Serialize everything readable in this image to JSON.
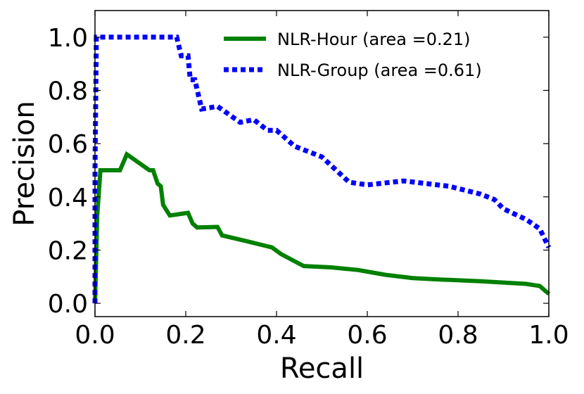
{
  "chart_data": {
    "type": "line",
    "xlabel": "Recall",
    "ylabel": "Precision",
    "xlim": [
      0.0,
      1.0
    ],
    "ylim": [
      -0.05,
      1.1
    ],
    "xticks": [
      "0.0",
      "0.2",
      "0.4",
      "0.6",
      "0.8",
      "1.0"
    ],
    "yticks": [
      "0.0",
      "0.2",
      "0.4",
      "0.6",
      "0.8",
      "1.0"
    ],
    "grid": false,
    "legend_position": "top-right",
    "series": [
      {
        "name": "NLR-Hour (area =0.21)",
        "color": "#008000",
        "style": "solid",
        "points": [
          [
            0.0,
            0.0
          ],
          [
            0.005,
            0.33
          ],
          [
            0.012,
            0.5
          ],
          [
            0.055,
            0.5
          ],
          [
            0.07,
            0.56
          ],
          [
            0.12,
            0.5
          ],
          [
            0.128,
            0.5
          ],
          [
            0.138,
            0.45
          ],
          [
            0.145,
            0.44
          ],
          [
            0.15,
            0.37
          ],
          [
            0.165,
            0.33
          ],
          [
            0.205,
            0.34
          ],
          [
            0.215,
            0.3
          ],
          [
            0.225,
            0.285
          ],
          [
            0.27,
            0.287
          ],
          [
            0.28,
            0.255
          ],
          [
            0.33,
            0.235
          ],
          [
            0.39,
            0.21
          ],
          [
            0.41,
            0.185
          ],
          [
            0.46,
            0.14
          ],
          [
            0.52,
            0.135
          ],
          [
            0.58,
            0.125
          ],
          [
            0.64,
            0.107
          ],
          [
            0.7,
            0.095
          ],
          [
            0.75,
            0.09
          ],
          [
            0.85,
            0.083
          ],
          [
            0.95,
            0.073
          ],
          [
            0.98,
            0.065
          ],
          [
            1.0,
            0.035
          ]
        ]
      },
      {
        "name": "NLR-Group (area =0.61)",
        "color": "#0000ff",
        "style": "dotted",
        "points": [
          [
            0.0,
            0.0
          ],
          [
            0.0,
            0.5
          ],
          [
            0.003,
            1.0
          ],
          [
            0.18,
            1.0
          ],
          [
            0.19,
            0.93
          ],
          [
            0.205,
            0.93
          ],
          [
            0.21,
            0.84
          ],
          [
            0.22,
            0.84
          ],
          [
            0.235,
            0.73
          ],
          [
            0.27,
            0.74
          ],
          [
            0.32,
            0.68
          ],
          [
            0.35,
            0.69
          ],
          [
            0.38,
            0.65
          ],
          [
            0.4,
            0.65
          ],
          [
            0.44,
            0.59
          ],
          [
            0.5,
            0.55
          ],
          [
            0.56,
            0.455
          ],
          [
            0.6,
            0.445
          ],
          [
            0.68,
            0.46
          ],
          [
            0.78,
            0.44
          ],
          [
            0.85,
            0.41
          ],
          [
            0.88,
            0.39
          ],
          [
            0.9,
            0.355
          ],
          [
            0.95,
            0.315
          ],
          [
            0.98,
            0.28
          ],
          [
            1.0,
            0.21
          ]
        ]
      }
    ]
  }
}
